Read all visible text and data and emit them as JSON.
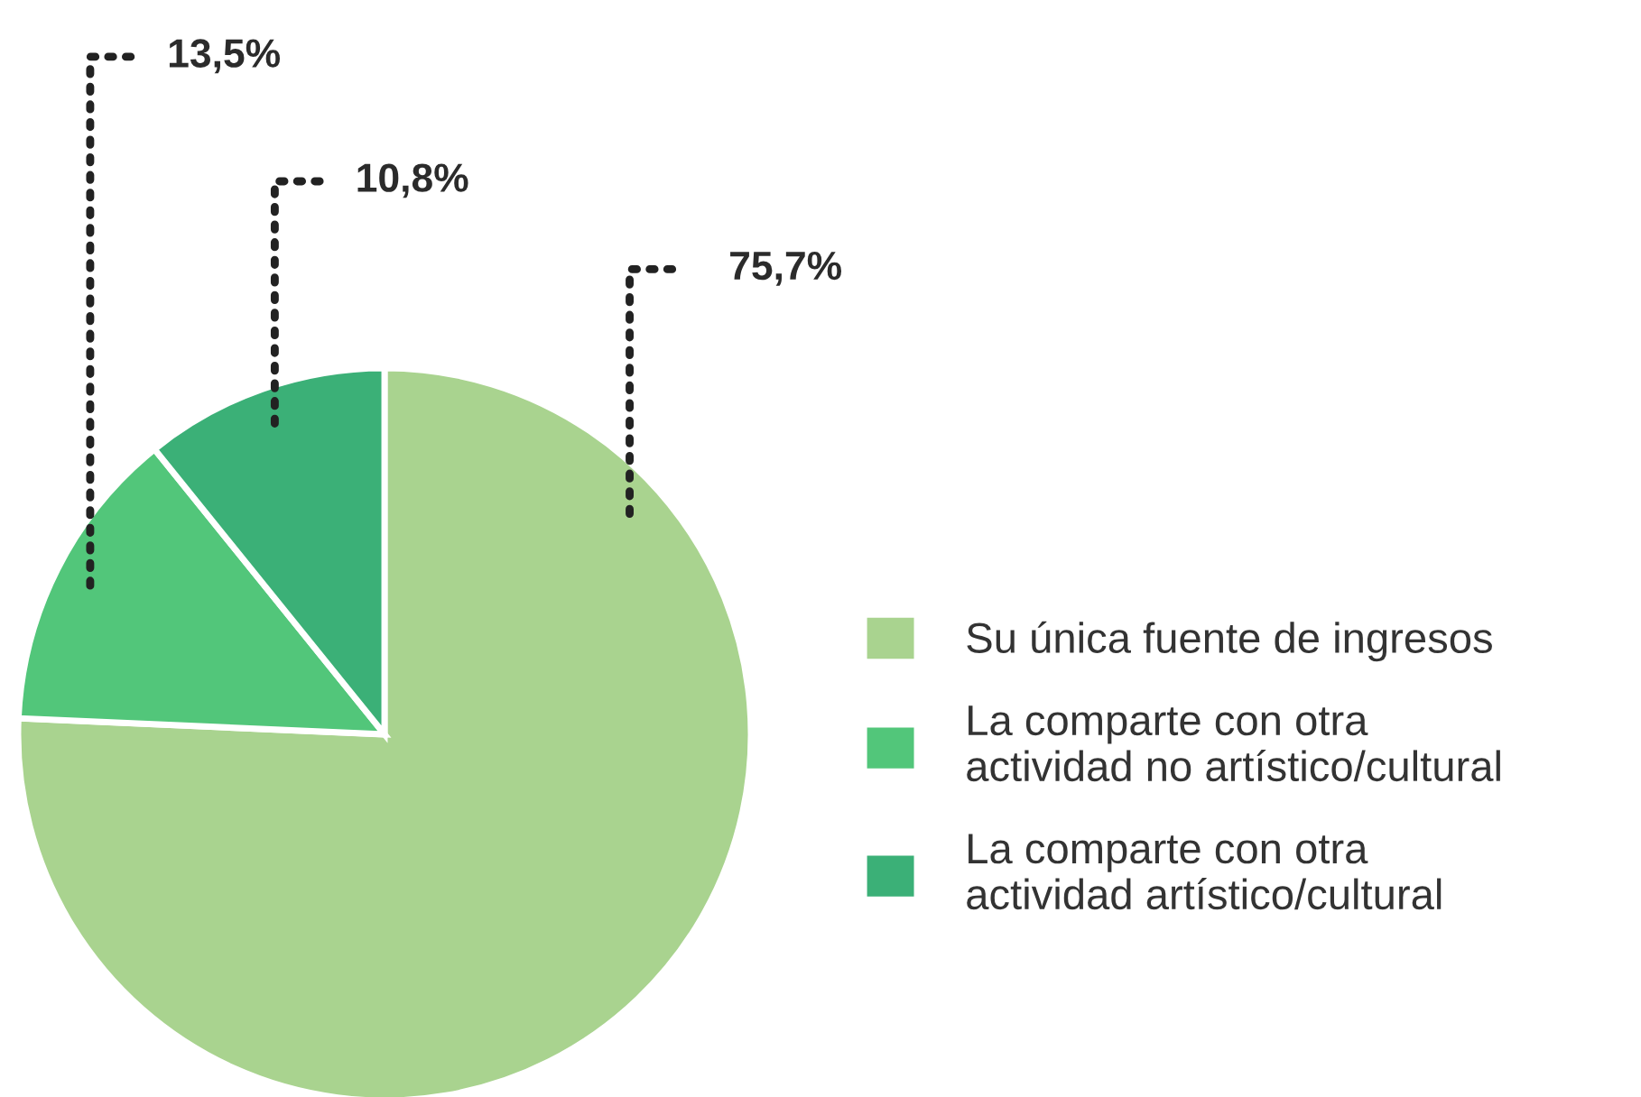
{
  "chart_data": {
    "type": "pie",
    "categories": [
      "Su única fuente de ingresos",
      "La comparte con otra\nactividad no artístico/cultural",
      "La comparte con otra\nactividad artístico/cultural"
    ],
    "values": [
      75.7,
      13.5,
      10.8
    ],
    "colors": [
      "#a9d38f",
      "#52c67a",
      "#3bb077"
    ],
    "value_labels": [
      "75,7%",
      "13,5%",
      "10,8%"
    ],
    "legend": "right"
  }
}
